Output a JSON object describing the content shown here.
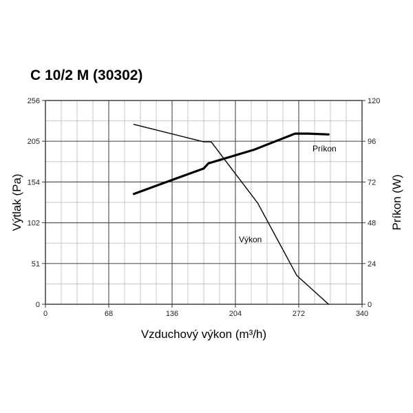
{
  "title": "C 10/2 M (30302)",
  "chart_data": {
    "type": "line",
    "title": "C 10/2 M (30302)",
    "xlabel": "Vzduchový výkon (m³/h)",
    "ylabel": "Výtlak (Pa)",
    "y2label": "Príkon (W)",
    "xlim": [
      0,
      340
    ],
    "ylim": [
      0,
      256
    ],
    "y2lim": [
      0,
      120
    ],
    "x_ticks": [
      "0",
      "68",
      "136",
      "204",
      "272",
      "340"
    ],
    "y_ticks": [
      "0",
      "51",
      "102",
      "154",
      "205",
      "256"
    ],
    "y2_ticks": [
      "0",
      "24",
      "48",
      "72",
      "96",
      "120"
    ],
    "grid": true,
    "series": [
      {
        "name": "Výkon",
        "axis": "left",
        "x": [
          95,
          170,
          178,
          228,
          270,
          304
        ],
        "y": [
          226,
          204,
          204,
          127,
          36,
          0
        ]
      },
      {
        "name": "Príkon",
        "axis": "right",
        "x": [
          95,
          130,
          170,
          175,
          224,
          268,
          282,
          304
        ],
        "y": [
          65,
          72,
          80,
          83,
          91,
          100.5,
          100.5,
          100
        ]
      }
    ]
  }
}
